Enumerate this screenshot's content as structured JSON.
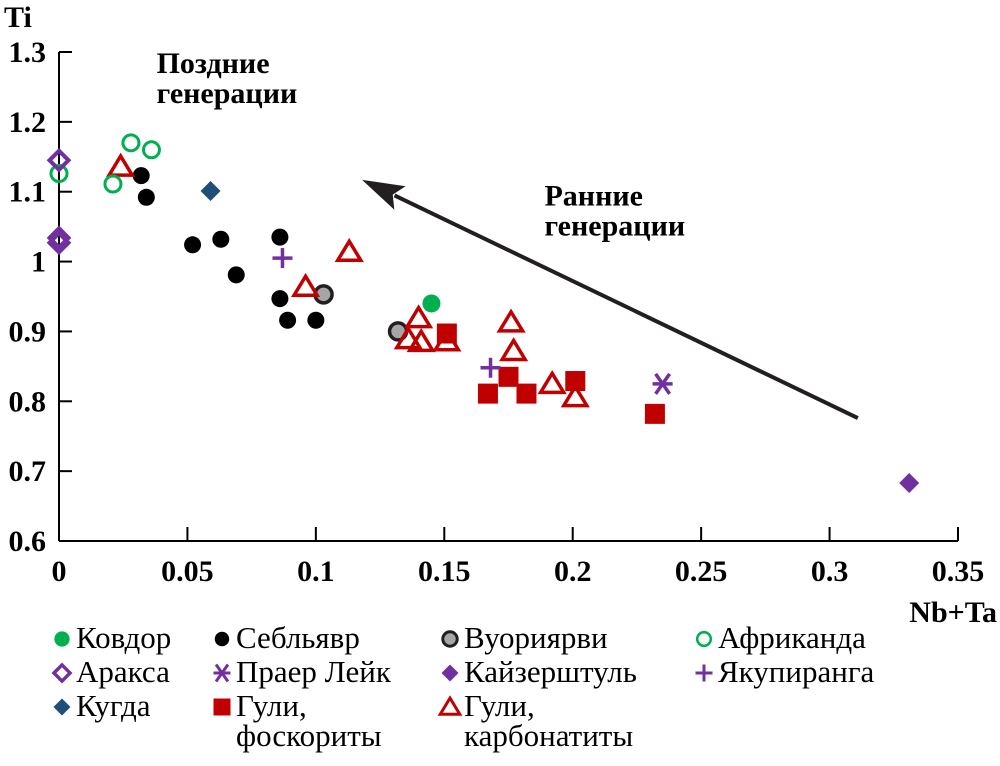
{
  "chart_data": {
    "type": "scatter",
    "title": "",
    "xlabel": "Nb+Ta",
    "ylabel": "Ti",
    "xlim": [
      0,
      0.35
    ],
    "ylim": [
      0.6,
      1.3
    ],
    "xticks": [
      "0",
      "0.05",
      "0.1",
      "0.15",
      "0.2",
      "0.25",
      "0.3",
      "0.35"
    ],
    "xtick_values": [
      0,
      0.05,
      0.1,
      0.15,
      0.2,
      0.25,
      0.3,
      0.35
    ],
    "yticks": [
      "0.6",
      "0.7",
      "0.8",
      "0.9",
      "1",
      "1.1",
      "1.2",
      "1.3"
    ],
    "ytick_values": [
      0.6,
      0.7,
      0.8,
      0.9,
      1.0,
      1.1,
      1.2,
      1.3
    ],
    "grid": false,
    "legend_position": "bottom",
    "annotations": [
      {
        "id": "late",
        "lines": [
          "Поздние",
          "генерации"
        ],
        "x": 0.038,
        "y": 1.27
      },
      {
        "id": "early",
        "lines": [
          "Ранние",
          "генерации"
        ],
        "x": 0.189,
        "y": 1.08
      }
    ],
    "arrow": {
      "from": [
        0.311,
        0.776
      ],
      "to": [
        0.118,
        1.117
      ],
      "label": "trend from early to late generations"
    },
    "series": [
      {
        "name": "Ковдор",
        "marker": "filled-circle",
        "color": "#00b050",
        "points": [
          [
            0.145,
            0.94
          ]
        ]
      },
      {
        "name": "Себльявр",
        "marker": "filled-circle-small",
        "color": "#000000",
        "points": [
          [
            0.032,
            1.123
          ],
          [
            0.034,
            1.092
          ],
          [
            0.052,
            1.024
          ],
          [
            0.063,
            1.032
          ],
          [
            0.069,
            0.981
          ],
          [
            0.086,
            1.035
          ],
          [
            0.086,
            0.947
          ],
          [
            0.089,
            0.916
          ],
          [
            0.1,
            0.916
          ]
        ]
      },
      {
        "name": "Вуориярви",
        "marker": "grey-circle",
        "color": "#a6a6a6",
        "edge": "#231f20",
        "points": [
          [
            0.103,
            0.953
          ],
          [
            0.132,
            0.9
          ]
        ]
      },
      {
        "name": "Африканда",
        "marker": "open-circle",
        "color": "#00b050",
        "points": [
          [
            0.0,
            1.126
          ],
          [
            0.021,
            1.111
          ],
          [
            0.028,
            1.17
          ],
          [
            0.036,
            1.16
          ]
        ]
      },
      {
        "name": "Аракса",
        "marker": "open-diamond",
        "color": "#7030a0",
        "points": [
          [
            0.0,
            1.145
          ],
          [
            0.0,
            1.034
          ],
          [
            0.0,
            1.027
          ]
        ]
      },
      {
        "name": "Праер Лейк",
        "marker": "asterisk",
        "color": "#7030a0",
        "points": [
          [
            0.235,
            0.825
          ]
        ]
      },
      {
        "name": "Кайзерштуль",
        "marker": "filled-diamond",
        "color": "#7030a0",
        "points": [
          [
            0.331,
            0.683
          ]
        ]
      },
      {
        "name": "Якупиранга",
        "marker": "plus",
        "color": "#7030a0",
        "points": [
          [
            0.087,
            1.005
          ],
          [
            0.168,
            0.848
          ]
        ]
      },
      {
        "name": "Кугда",
        "marker": "filled-diamond",
        "color": "#1f4e79",
        "points": [
          [
            0.059,
            1.101
          ]
        ]
      },
      {
        "name": "Гули, фоскориты",
        "marker": "filled-square",
        "color": "#c00000",
        "points": [
          [
            0.151,
            0.897
          ],
          [
            0.175,
            0.835
          ],
          [
            0.167,
            0.811
          ],
          [
            0.182,
            0.811
          ],
          [
            0.201,
            0.829
          ],
          [
            0.232,
            0.782
          ]
        ]
      },
      {
        "name": "Гули, карбонатиты",
        "marker": "open-triangle",
        "color": "#c00000",
        "points": [
          [
            0.024,
            1.136
          ],
          [
            0.096,
            0.964
          ],
          [
            0.113,
            1.014
          ],
          [
            0.14,
            0.919
          ],
          [
            0.136,
            0.889
          ],
          [
            0.141,
            0.885
          ],
          [
            0.151,
            0.886
          ],
          [
            0.176,
            0.913
          ],
          [
            0.177,
            0.872
          ],
          [
            0.192,
            0.825
          ],
          [
            0.201,
            0.806
          ]
        ]
      }
    ],
    "legend": [
      {
        "series": 0,
        "lines": [
          "Ковдор"
        ]
      },
      {
        "series": 1,
        "lines": [
          "Себльявр"
        ]
      },
      {
        "series": 2,
        "lines": [
          "Вуориярви"
        ]
      },
      {
        "series": 3,
        "lines": [
          "Африканда"
        ]
      },
      {
        "series": 4,
        "lines": [
          "Аракса"
        ]
      },
      {
        "series": 5,
        "lines": [
          "Праер Лейк"
        ]
      },
      {
        "series": 6,
        "lines": [
          "Кайзерштуль"
        ]
      },
      {
        "series": 7,
        "lines": [
          "Якупиранга"
        ]
      },
      {
        "series": 8,
        "lines": [
          "Кугда"
        ]
      },
      {
        "series": 9,
        "lines": [
          "Гули,",
          "фоскориты"
        ]
      },
      {
        "series": 10,
        "lines": [
          "Гули,",
          "карбонатиты"
        ]
      }
    ]
  }
}
